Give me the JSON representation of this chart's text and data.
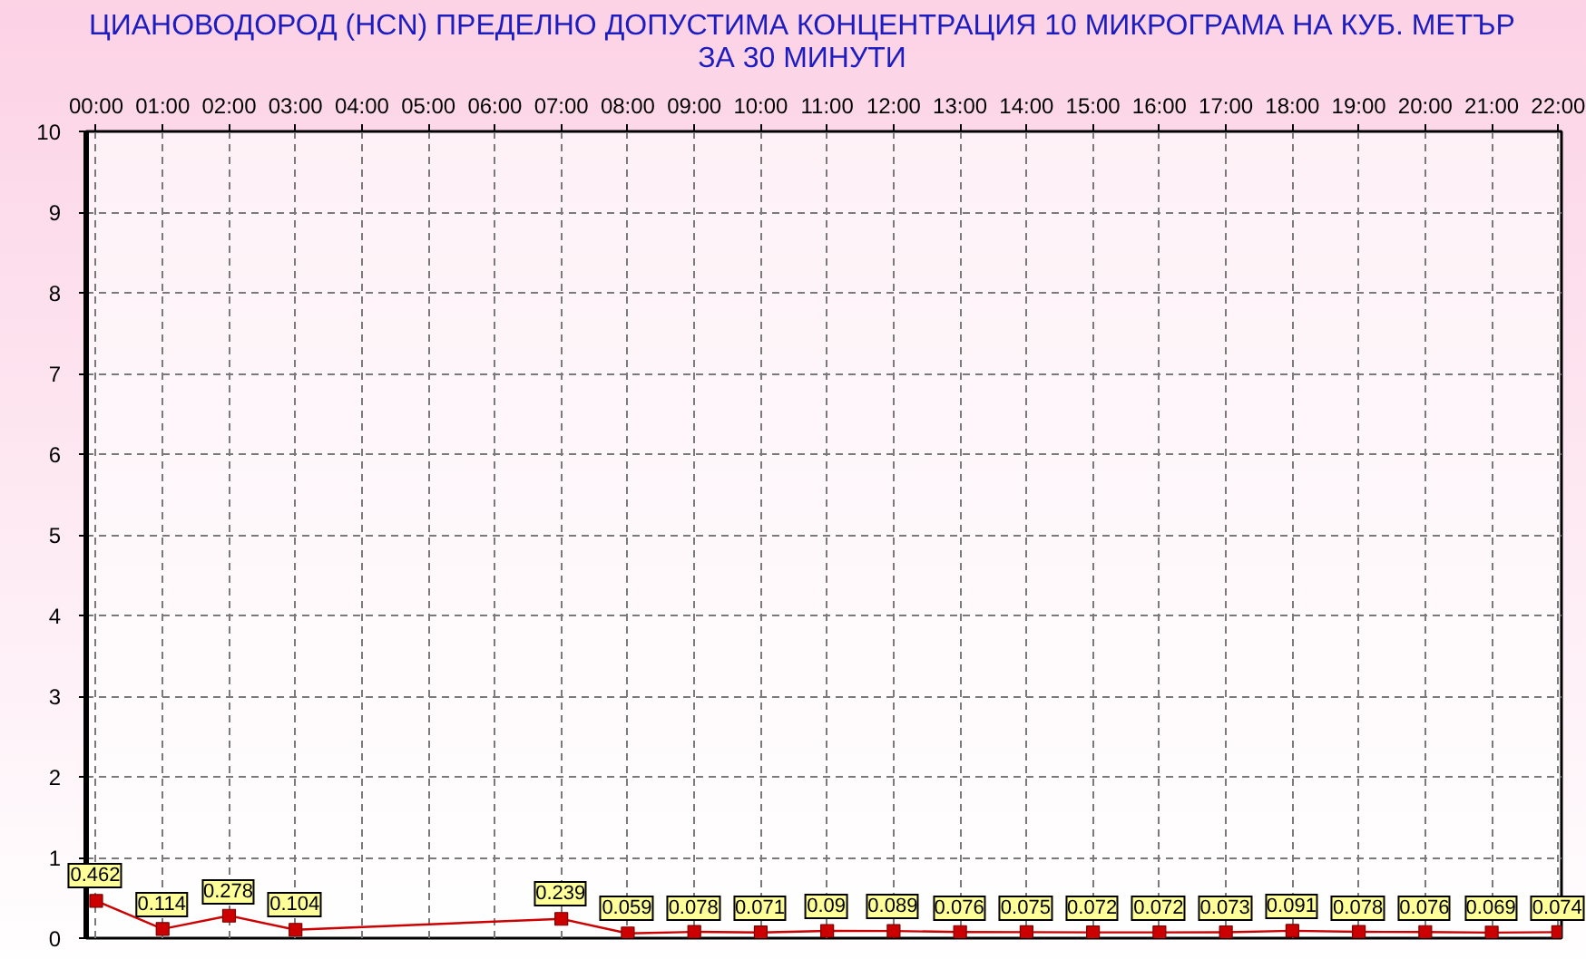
{
  "chart_data": {
    "type": "line",
    "title": "ЦИАНОВОДОРОД (HCN) ПРЕДЕЛНО ДОПУСТИМА КОНЦЕНТРАЦИЯ 10 МИКРОГРАМА НА КУБ. МЕТЪР\nЗА 30 МИНУТИ",
    "xlim": [
      -0.15,
      22.05
    ],
    "xticks": [
      {
        "value": 0,
        "label": "00:00"
      },
      {
        "value": 1,
        "label": "01:00"
      },
      {
        "value": 2,
        "label": "02:00"
      },
      {
        "value": 3,
        "label": "03:00"
      },
      {
        "value": 4,
        "label": "04:00"
      },
      {
        "value": 5,
        "label": "05:00"
      },
      {
        "value": 6,
        "label": "06:00"
      },
      {
        "value": 7,
        "label": "07:00"
      },
      {
        "value": 8,
        "label": "08:00"
      },
      {
        "value": 9,
        "label": "09:00"
      },
      {
        "value": 10,
        "label": "10:00"
      },
      {
        "value": 11,
        "label": "11:00"
      },
      {
        "value": 12,
        "label": "12:00"
      },
      {
        "value": 13,
        "label": "13:00"
      },
      {
        "value": 14,
        "label": "14:00"
      },
      {
        "value": 15,
        "label": "15:00"
      },
      {
        "value": 16,
        "label": "16:00"
      },
      {
        "value": 17,
        "label": "17:00"
      },
      {
        "value": 18,
        "label": "18:00"
      },
      {
        "value": 19,
        "label": "19:00"
      },
      {
        "value": 20,
        "label": "20:00"
      },
      {
        "value": 21,
        "label": "21:00"
      },
      {
        "value": 22,
        "label": "22:00"
      }
    ],
    "ylim": [
      0,
      10
    ],
    "yticks": [
      0,
      1,
      2,
      3,
      4,
      5,
      6,
      7,
      8,
      9,
      10
    ],
    "x": [
      0,
      1,
      2,
      3,
      7,
      8,
      9,
      10,
      11,
      12,
      13,
      14,
      15,
      16,
      17,
      18,
      19,
      20,
      21,
      22
    ],
    "series": [
      {
        "color": "#cc0000",
        "values": [
          0.462,
          0.114,
          0.278,
          0.104,
          0.239,
          0.059,
          0.078,
          0.071,
          0.09,
          0.089,
          0.076,
          0.075,
          0.072,
          0.072,
          0.073,
          0.091,
          0.078,
          0.076,
          0.069,
          0.074
        ]
      }
    ],
    "marker": "square",
    "line_style": "solid",
    "grid": true,
    "data_labels": true
  }
}
